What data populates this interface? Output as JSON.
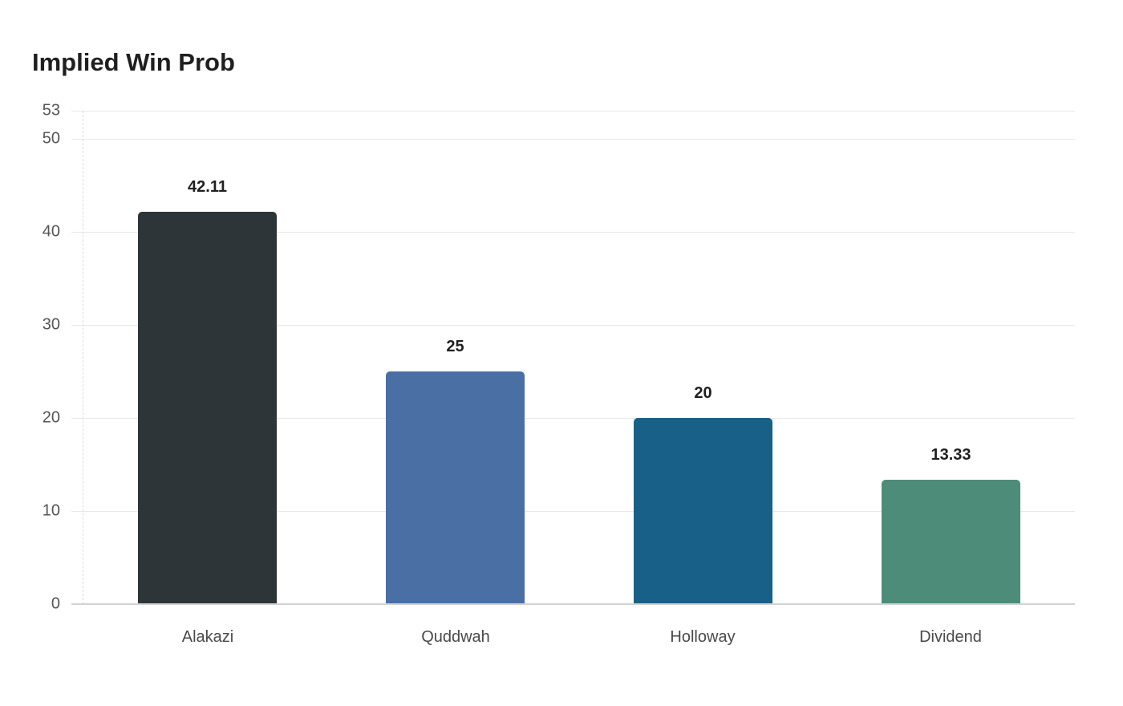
{
  "chart_data": {
    "type": "bar",
    "title": "Implied Win Prob",
    "xlabel": "",
    "ylabel": "",
    "categories": [
      "Alakazi",
      "Quddwah",
      "Holloway",
      "Dividend"
    ],
    "values": [
      42.11,
      25,
      20,
      13.33
    ],
    "value_labels": [
      "42.11",
      "25",
      "20",
      "13.33"
    ],
    "colors": [
      "#2d3538",
      "#4a6fa5",
      "#186087",
      "#4e8c7a"
    ],
    "ylim": [
      0,
      53
    ],
    "yticks": [
      "0",
      "10",
      "20",
      "30",
      "40",
      "50",
      "53"
    ],
    "grid": true,
    "legend": "none"
  }
}
